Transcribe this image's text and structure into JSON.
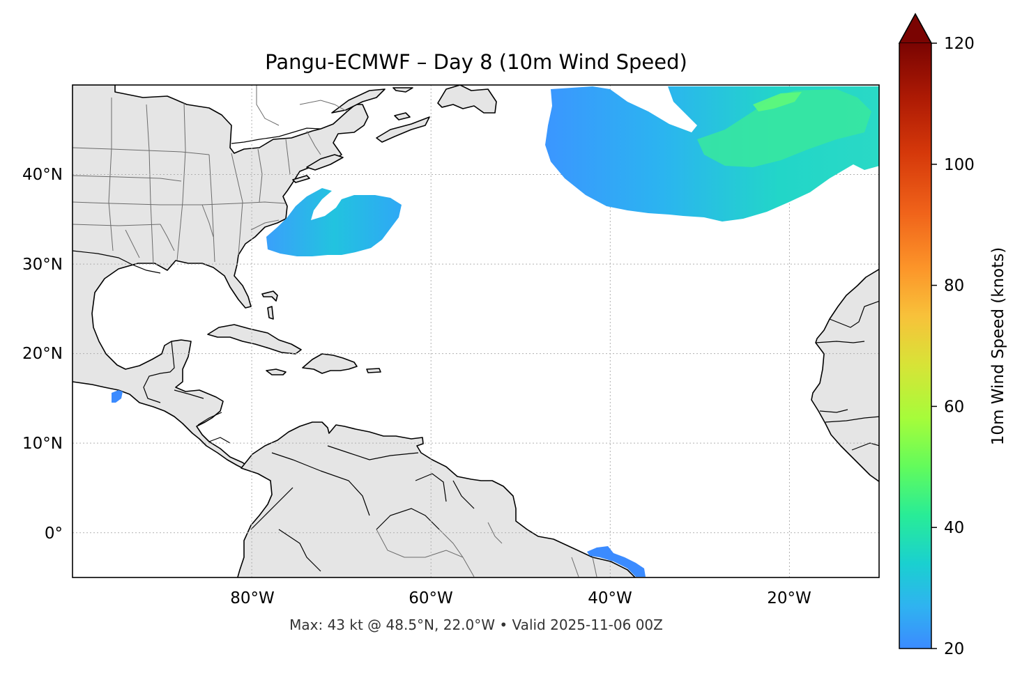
{
  "map": {
    "title": "Pangu-ECMWF – Day 8 (10m Wind Speed)",
    "footer": "Max: 43 kt @ 48.5°N, 22.0°W • Valid 2025-11-06 00Z",
    "extent": {
      "lon_min": -100,
      "lon_max": -10,
      "lat_min": -5,
      "lat_max": 50
    },
    "gridlines": true,
    "lon_ticks": [
      {
        "value": -80,
        "label": "80°W"
      },
      {
        "value": -60,
        "label": "60°W"
      },
      {
        "value": -40,
        "label": "40°W"
      },
      {
        "value": -20,
        "label": "20°W"
      }
    ],
    "lat_ticks": [
      {
        "value": 40,
        "label": "40°N"
      },
      {
        "value": 30,
        "label": "30°N"
      },
      {
        "value": 20,
        "label": "20°N"
      },
      {
        "value": 10,
        "label": "10°N"
      },
      {
        "value": 0,
        "label": "0°"
      }
    ],
    "colors": {
      "land": "#e5e5e5",
      "coast": "#000000",
      "borders": "#666666",
      "gridline": "#b0b0b0"
    }
  },
  "colorbar": {
    "label": "10m Wind Speed (knots)",
    "min": 20,
    "max": 120,
    "extend": "max",
    "ticks": [
      {
        "value": 20,
        "label": "20"
      },
      {
        "value": 40,
        "label": "40"
      },
      {
        "value": 60,
        "label": "60"
      },
      {
        "value": 80,
        "label": "80"
      },
      {
        "value": 100,
        "label": "100"
      },
      {
        "value": 120,
        "label": "120"
      }
    ],
    "colormap": [
      "#30123b",
      "#4145ab",
      "#4675ed",
      "#39a2fc",
      "#1bcfd4",
      "#24eca6",
      "#61fc6c",
      "#a4fc3b",
      "#d1e834",
      "#f3c63a",
      "#fe9b2d",
      "#f36315",
      "#d93806",
      "#b11901",
      "#7a0402"
    ],
    "extend_color": "#7a0402"
  },
  "wind_regions": [
    {
      "name": "north-atlantic-jet",
      "peak_kt": 43,
      "peak_lat": 48.5,
      "peak_lon": -22.0
    },
    {
      "name": "us-east-coast-system",
      "peak_kt": 32
    },
    {
      "name": "pacific-patch",
      "peak_kt": 22
    },
    {
      "name": "brazil-coast-patch",
      "peak_kt": 22
    }
  ]
}
